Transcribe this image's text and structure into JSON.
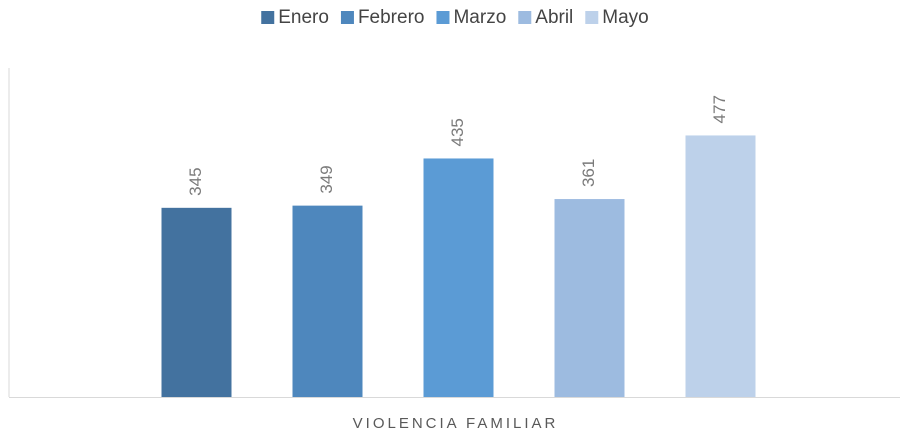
{
  "chart_data": {
    "type": "bar",
    "categories": [
      "VIOLENCIA FAMILIAR"
    ],
    "series": [
      {
        "name": "Enero",
        "color": "#43729f",
        "values": [
          345
        ]
      },
      {
        "name": "Febrero",
        "color": "#4e87bd",
        "values": [
          349
        ]
      },
      {
        "name": "Marzo",
        "color": "#5b9bd5",
        "values": [
          435
        ]
      },
      {
        "name": "Abril",
        "color": "#9dbbe0",
        "values": [
          361
        ]
      },
      {
        "name": "Mayo",
        "color": "#bdd1ea",
        "values": [
          477
        ]
      }
    ],
    "ylim": [
      0,
      600
    ],
    "legend": "top"
  }
}
